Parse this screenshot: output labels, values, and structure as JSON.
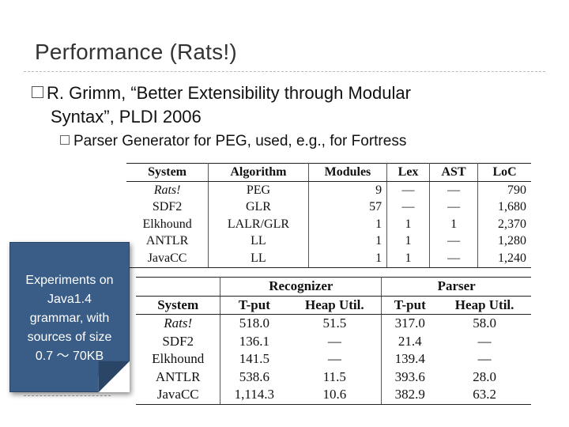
{
  "title": "Performance (Rats!)",
  "bullet1": {
    "line1": "R. Grimm, “Better Extensibility through Modular",
    "line2": "Syntax”, PLDI 2006"
  },
  "bullet2": "Parser Generator for PEG, used, e.g., for Fortress",
  "table1": {
    "headers": [
      "System",
      "Algorithm",
      "Modules",
      "Lex",
      "AST",
      "LoC"
    ],
    "rows": [
      [
        "Rats!",
        "PEG",
        "9",
        "—",
        "—",
        "790"
      ],
      [
        "SDF2",
        "GLR",
        "57",
        "—",
        "—",
        "1,680"
      ],
      [
        "Elkhound",
        "LALR/GLR",
        "1",
        "1",
        "1",
        "2,370"
      ],
      [
        "ANTLR",
        "LL",
        "1",
        "1",
        "—",
        "1,280"
      ],
      [
        "JavaCC",
        "LL",
        "1",
        "1",
        "—",
        "1,240"
      ]
    ]
  },
  "table2": {
    "groups": [
      "Recognizer",
      "Parser"
    ],
    "headers": [
      "System",
      "T-put",
      "Heap Util.",
      "T-put",
      "Heap Util."
    ],
    "rows": [
      [
        "Rats!",
        "518.0",
        "51.5",
        "317.0",
        "58.0"
      ],
      [
        "SDF2",
        "136.1",
        "—",
        "21.4",
        "—"
      ],
      [
        "Elkhound",
        "141.5",
        "—",
        "139.4",
        "—"
      ],
      [
        "ANTLR",
        "538.6",
        "11.5",
        "393.6",
        "28.0"
      ],
      [
        "JavaCC",
        "1,114.3",
        "10.6",
        "382.9",
        "63.2"
      ]
    ]
  },
  "callout": {
    "lines": [
      "Experiments on",
      "Java1.4",
      "grammar, with",
      "sources of size",
      "0.7 〜 70KB"
    ]
  }
}
